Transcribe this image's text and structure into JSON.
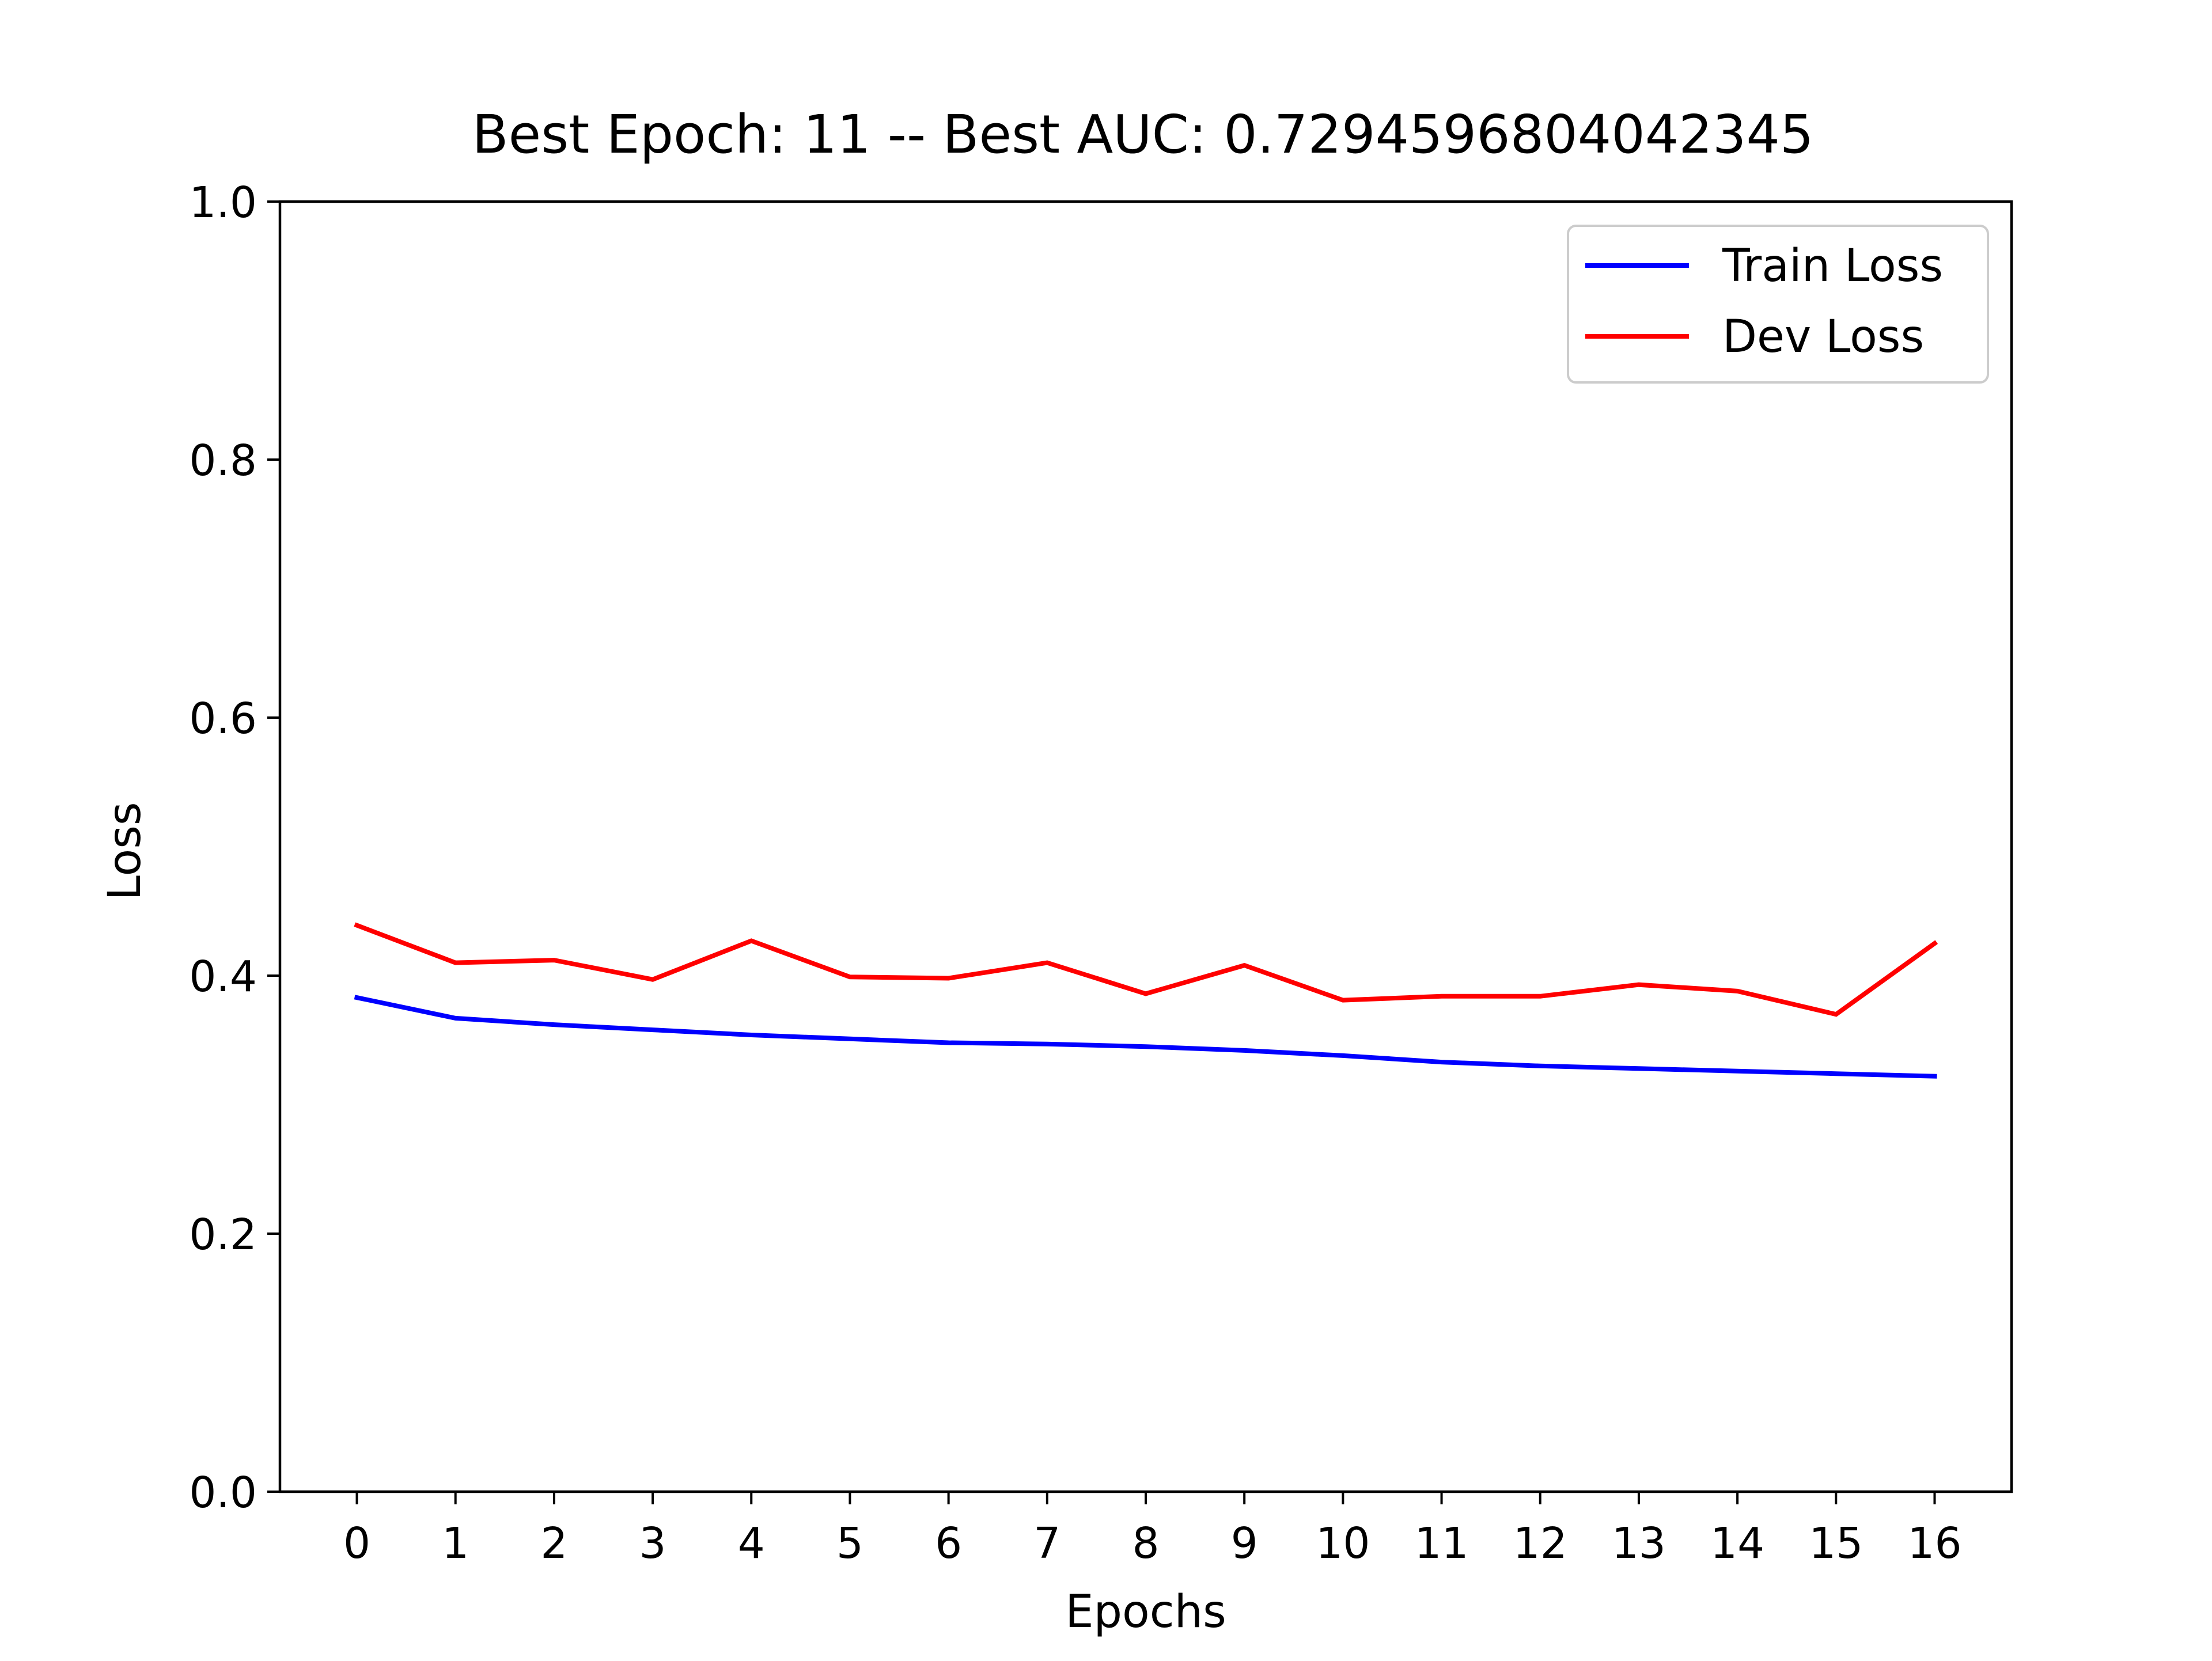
{
  "chart_data": {
    "type": "line",
    "title": "Best Epoch: 11 -- Best AUC: 0.7294596804042345",
    "xlabel": "Epochs",
    "ylabel": "Loss",
    "x": [
      0,
      1,
      2,
      3,
      4,
      5,
      6,
      7,
      8,
      9,
      10,
      11,
      12,
      13,
      14,
      15,
      16
    ],
    "x_tick_labels": [
      "0",
      "1",
      "2",
      "3",
      "4",
      "5",
      "6",
      "7",
      "8",
      "9",
      "10",
      "11",
      "12",
      "13",
      "14",
      "15",
      "16"
    ],
    "xlim": [
      -0.78,
      16.78
    ],
    "ylim": [
      0.0,
      1.0
    ],
    "y_ticks": [
      0.0,
      0.2,
      0.4,
      0.6,
      0.8,
      1.0
    ],
    "y_tick_labels": [
      "0.0",
      "0.2",
      "0.4",
      "0.6",
      "0.8",
      "1.0"
    ],
    "grid": false,
    "legend_position": "top-right",
    "series": [
      {
        "name": "Train Loss",
        "color": "#0000ff",
        "values": [
          0.383,
          0.367,
          0.362,
          0.358,
          0.354,
          0.351,
          0.348,
          0.347,
          0.345,
          0.342,
          0.338,
          0.333,
          0.33,
          0.328,
          0.326,
          0.324,
          0.322
        ]
      },
      {
        "name": "Dev Loss",
        "color": "#ff0000",
        "values": [
          0.439,
          0.41,
          0.412,
          0.397,
          0.427,
          0.399,
          0.398,
          0.41,
          0.386,
          0.408,
          0.381,
          0.384,
          0.384,
          0.393,
          0.388,
          0.37,
          0.425
        ]
      }
    ]
  }
}
